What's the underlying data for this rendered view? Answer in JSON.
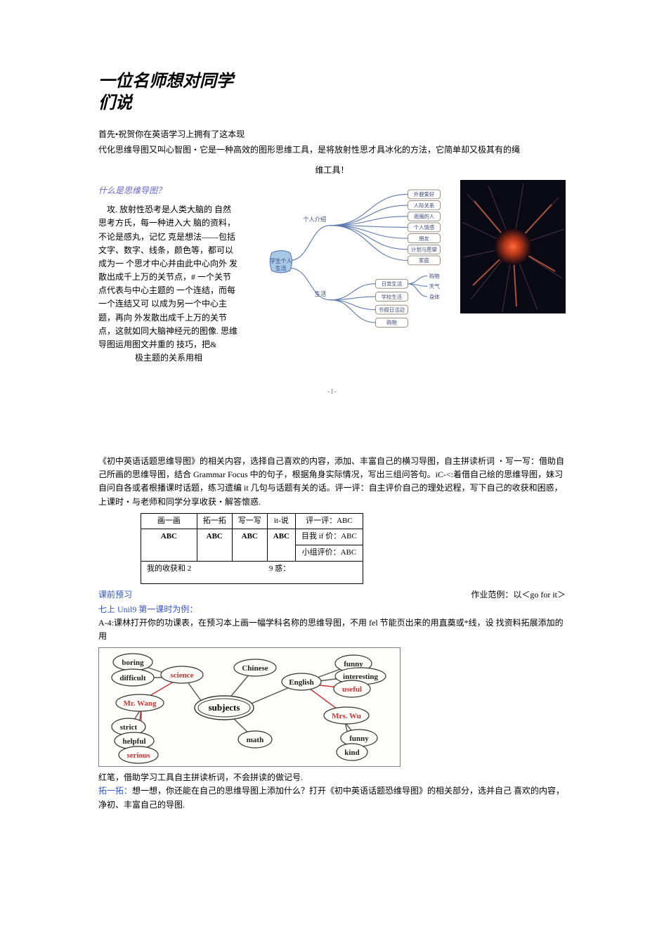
{
  "title_l1": "一位名师想对同学",
  "title_l2": "们说",
  "intro1": "首先•祝贺你在英语学习上拥有了这本现",
  "intro2": "代化思维导图又叫心智图・它是一种高效的图形思维工具，是将放射性思才具冰化的方法，它简单却又极其有的绳",
  "intro3": "维工具！",
  "q_heading": "什么是思维导图？",
  "left_body": "攻. 放射性恐考是人类大脑的 自然思考方氏，每一种进入大 脑的资料，不论是感丸，记忆 克是想法——包括文字、数字、线条，颜色等，都可以成为一 个思才中心并由此中心向外 发散出成千上万的关节点，# 一个关节点代表与中心主题的 一个连结，而每一个连结又可 以成为另一个中心主题，再向 外发散出成千上万的关节点，这就如同大脑神经元的图像. 思维导图运用图文并重的 技巧，把&",
  "left_tail": "极主题的关系用相",
  "mindmap": {
    "center": "学生个人\\n生活",
    "branch1": "个人介绍",
    "b1_items": [
      "外貌爱好",
      "人际关系",
      "周围的人",
      "个人情感",
      "朋友",
      "计划与愿望",
      "家庭"
    ],
    "branch2": "生活",
    "b2_items": [
      "日常生活",
      "学校生活",
      "节假日活动",
      "购物"
    ],
    "b2_sub": [
      "购物",
      "天气",
      "身体"
    ],
    "colors": {
      "center_fill": "#a8c8e8",
      "center_stroke": "#4a6aa8",
      "line": "#5a7ab0",
      "leaf_stroke": "#7a6a5a",
      "leaf_fill": "#ffffff",
      "text": "#3a4a7a"
    }
  },
  "page_num": "-1-",
  "sec2_para": "《初中英语话题思维导图》的相关内容，选择自己喜欢的内容，添加、丰富自己的横习导图，自主拼读析词 ・写一写：借助自己所画的思维导图，结合 Grammar Focus 中的句子，根据角身实际情况，写出三组问答句。iC-<:着借自己绘的思维导图，妹习自问自各或者根播课时话题，练习遗编 it 几句与话题有关的话。评一评：自主评价自己的理处迟程，写下自己的收获和困惑，上课时・与老师和同学分享收获・解答懷惑.",
  "table": {
    "h1": "画一画",
    "h2": "拓一拓",
    "h3": "写一写",
    "h4": "it-说",
    "h5": "评一评：ABC",
    "r1c1": "ABC",
    "r1c2": "ABC",
    "r1c3": "ABC",
    "r1c4": "ABC",
    "r1c5a": "目我 if 价：ABC",
    "r1c5b": "小组评价：ABC",
    "r2": "我的收获和 2",
    "r2b": "9 惑："
  },
  "pre_label": "课前预习",
  "hw_label": "作业范例：以＜go for it＞",
  "unit_line": "七上 Unil9 第一课时为例：",
  "a4_line": "A-4:课林打开你的功课表，在预习本上画一幅学科名称的思维导图，不用 fel 节能页出来的用直奠或*线，设 找资料拓展添加的用",
  "subjects": {
    "center": "subjects",
    "nodes": {
      "science": "science",
      "chinese": "Chinese",
      "english": "English",
      "math": "math",
      "boring": "boring",
      "difficult": "difficult",
      "mrwang": "Mr. Wang",
      "strict": "strict",
      "helpful": "helpful",
      "serious": "serious",
      "funny": "funny",
      "interesting": "interesting",
      "useful": "useful",
      "mrswu": "Mrs. Wu",
      "funny2": "funny",
      "kind": "kind"
    },
    "colors": {
      "line": "#555",
      "node_stroke": "#333",
      "node_fill": "#fcfcf8"
    }
  },
  "red_line": "红笔，借助学习工具自主拼读析词，不会拼读的做记号.",
  "tuo_prefix": "拓一拓：",
  "tuo_line": "想一想，你还能在自己的思维导图上添加什么？打开《初中英语话题恐维导图》的相关部分，选并自己 喜欢的内容，净初、丰富自己的导图."
}
